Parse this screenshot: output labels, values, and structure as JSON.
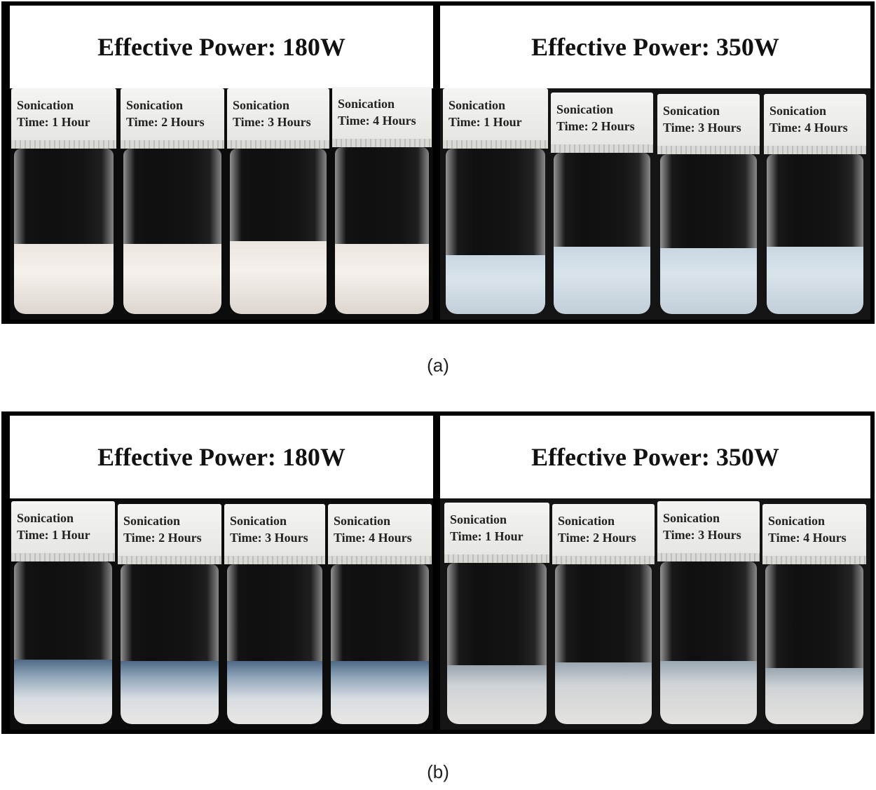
{
  "figure": {
    "rows": [
      {
        "caption": "(a)",
        "panels": [
          {
            "title": "Effective Power: 180W",
            "vials": [
              {
                "label_line1": "Sonication",
                "label_line2": "Time: 1 Hour"
              },
              {
                "label_line1": "Sonication",
                "label_line2": "Time: 2 Hours"
              },
              {
                "label_line1": "Sonication",
                "label_line2": "Time: 3 Hours"
              },
              {
                "label_line1": "Sonication",
                "label_line2": "Time: 4 Hours"
              }
            ]
          },
          {
            "title": "Effective Power: 350W",
            "vials": [
              {
                "label_line1": "Sonication",
                "label_line2": "Time: 1 Hour"
              },
              {
                "label_line1": "Sonication",
                "label_line2": "Time: 2 Hours"
              },
              {
                "label_line1": "Sonication",
                "label_line2": "Time: 3 Hours"
              },
              {
                "label_line1": "Sonication",
                "label_line2": "Time: 4 Hours"
              }
            ]
          }
        ]
      },
      {
        "caption": "(b)",
        "panels": [
          {
            "title": "Effective Power: 180W",
            "vials": [
              {
                "label_line1": "Sonication",
                "label_line2": "Time: 1 Hour"
              },
              {
                "label_line1": "Sonication",
                "label_line2": "Time: 2 Hours"
              },
              {
                "label_line1": "Sonication",
                "label_line2": "Time: 3 Hours"
              },
              {
                "label_line1": "Sonication",
                "label_line2": "Time: 4 Hours"
              }
            ]
          },
          {
            "title": "Effective Power: 350W",
            "vials": [
              {
                "label_line1": "Sonication",
                "label_line2": "Time: 1 Hour"
              },
              {
                "label_line1": "Sonication",
                "label_line2": "Time: 2 Hours"
              },
              {
                "label_line1": "Sonication",
                "label_line2": "Time: 3 Hours"
              },
              {
                "label_line1": "Sonication",
                "label_line2": "Time: 4 Hours"
              }
            ]
          }
        ]
      }
    ]
  }
}
